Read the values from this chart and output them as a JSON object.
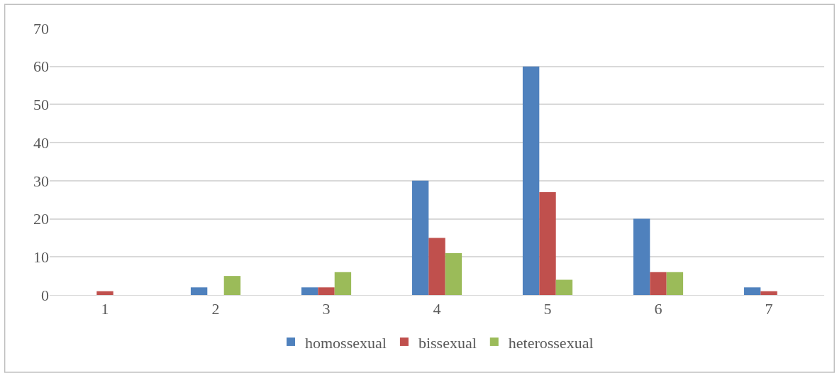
{
  "chart_data": {
    "type": "bar",
    "categories": [
      "1",
      "2",
      "3",
      "4",
      "5",
      "6",
      "7"
    ],
    "series": [
      {
        "name": "homossexual",
        "color": "#4f81bd",
        "values": [
          0,
          2,
          2,
          30,
          60,
          20,
          2
        ]
      },
      {
        "name": "bissexual",
        "color": "#c0504d",
        "values": [
          1,
          0,
          2,
          15,
          27,
          6,
          1
        ]
      },
      {
        "name": "heterossexual",
        "color": "#9bbb59",
        "values": [
          0,
          5,
          6,
          11,
          4,
          6,
          0
        ]
      }
    ],
    "ylim": [
      0,
      70
    ],
    "yticks": [
      0,
      10,
      20,
      30,
      40,
      50,
      60,
      70
    ],
    "grid": "y",
    "legend": "bottom"
  }
}
